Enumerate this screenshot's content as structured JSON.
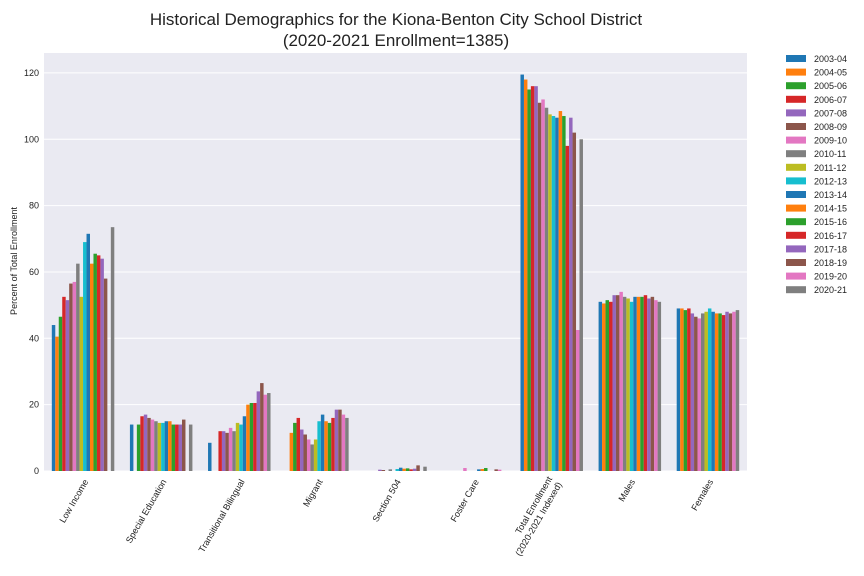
{
  "chart_data": {
    "type": "bar",
    "title": "Historical Demographics for the Kiona-Benton City School District",
    "subtitle": "(2020-2021 Enrollment=1385)",
    "xlabel": "",
    "ylabel": "Percent of Total Enrollment",
    "ylim": [
      0,
      126
    ],
    "yticks": [
      0,
      20,
      40,
      60,
      80,
      100,
      120
    ],
    "grid": true,
    "legend_position": "outside-right",
    "background": "#eaeaf2",
    "categories": [
      "Low Income",
      "Special Education",
      "Transitional Bilingual",
      "Migrant",
      "Section 504",
      "Foster Care",
      "Total Enrollment\n(2020-2021 Indexed)",
      "Males",
      "Females"
    ],
    "series": [
      {
        "name": "2003-04",
        "color": "#1f77b4",
        "values": [
          44,
          14,
          8.5,
          null,
          null,
          null,
          119.5,
          51,
          49
        ]
      },
      {
        "name": "2004-05",
        "color": "#ff7f0e",
        "values": [
          40.5,
          null,
          null,
          11.5,
          null,
          null,
          118,
          50.5,
          49
        ]
      },
      {
        "name": "2005-06",
        "color": "#2ca02c",
        "values": [
          46.5,
          14,
          null,
          14.5,
          null,
          null,
          115,
          51.5,
          48.5
        ]
      },
      {
        "name": "2006-07",
        "color": "#d62728",
        "values": [
          52.5,
          16.5,
          12,
          16,
          null,
          null,
          116,
          51,
          49
        ]
      },
      {
        "name": "2007-08",
        "color": "#9467bd",
        "values": [
          51.5,
          17,
          12,
          12.5,
          0.4,
          null,
          116,
          53,
          47.5
        ]
      },
      {
        "name": "2008-09",
        "color": "#8c564b",
        "values": [
          56.5,
          16,
          11.5,
          11,
          0.3,
          null,
          111,
          53,
          46.5
        ]
      },
      {
        "name": "2009-10",
        "color": "#e377c2",
        "values": [
          57,
          15.5,
          13,
          9.5,
          null,
          0.9,
          112,
          54,
          46
        ]
      },
      {
        "name": "2010-11",
        "color": "#7f7f7f",
        "values": [
          62.5,
          15,
          12,
          8,
          0.5,
          null,
          109.5,
          52.5,
          47.5
        ]
      },
      {
        "name": "2011-12",
        "color": "#bcbd22",
        "values": [
          52.5,
          14.5,
          14.5,
          9.5,
          null,
          null,
          107.5,
          52,
          48
        ]
      },
      {
        "name": "2012-13",
        "color": "#17becf",
        "values": [
          69,
          14.5,
          14,
          15,
          0.6,
          null,
          107,
          51,
          49
        ]
      },
      {
        "name": "2013-14",
        "color": "#1f77b4",
        "values": [
          71.5,
          15,
          16.5,
          17,
          1,
          0.5,
          106.5,
          52.5,
          48
        ]
      },
      {
        "name": "2014-15",
        "color": "#ff7f0e",
        "values": [
          62.5,
          15,
          20,
          15,
          0.7,
          0.6,
          108.5,
          52.5,
          47.5
        ]
      },
      {
        "name": "2015-16",
        "color": "#2ca02c",
        "values": [
          65.5,
          14,
          20.5,
          14.5,
          0.8,
          0.9,
          107,
          52.5,
          47.5
        ]
      },
      {
        "name": "2016-17",
        "color": "#d62728",
        "values": [
          65,
          14,
          20.5,
          16,
          0.5,
          null,
          98,
          53,
          47
        ]
      },
      {
        "name": "2017-18",
        "color": "#9467bd",
        "values": [
          64,
          14,
          24,
          18.5,
          0.7,
          null,
          106.5,
          52,
          48
        ]
      },
      {
        "name": "2018-19",
        "color": "#8c564b",
        "values": [
          58,
          15.5,
          26.5,
          18.5,
          1.7,
          0.5,
          102,
          52.5,
          47.5
        ]
      },
      {
        "name": "2019-20",
        "color": "#e377c2",
        "values": [
          null,
          null,
          23,
          17,
          null,
          0.4,
          42.5,
          51.5,
          48
        ]
      },
      {
        "name": "2020-21",
        "color": "#7f7f7f",
        "values": [
          73.5,
          14,
          23.5,
          16,
          1.3,
          null,
          100,
          51,
          48.5
        ]
      }
    ]
  }
}
